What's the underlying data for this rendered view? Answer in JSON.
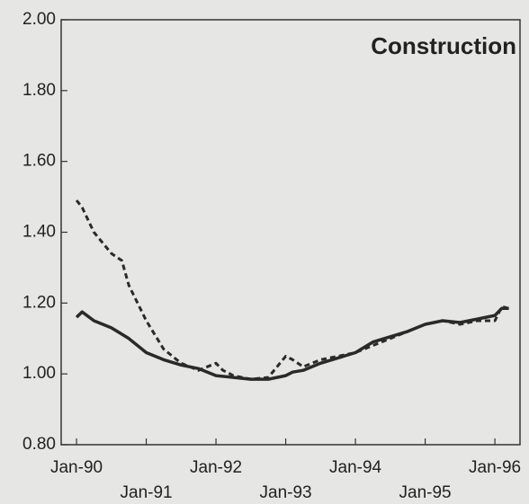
{
  "chart_data": {
    "type": "line",
    "title": "Construction",
    "series": [
      {
        "color": "#2a2a2a",
        "style": "solid",
        "x": [
          1990.0,
          1990.08,
          1990.25,
          1990.5,
          1990.75,
          1991.0,
          1991.25,
          1991.5,
          1991.75,
          1992.0,
          1992.25,
          1992.5,
          1992.75,
          1993.0,
          1993.1,
          1993.25,
          1993.5,
          1993.75,
          1994.0,
          1994.25,
          1994.5,
          1994.75,
          1995.0,
          1995.25,
          1995.5,
          1995.75,
          1996.0,
          1996.1,
          1996.2
        ],
        "values": [
          1.16,
          1.175,
          1.15,
          1.13,
          1.1,
          1.06,
          1.04,
          1.025,
          1.015,
          0.995,
          0.99,
          0.985,
          0.985,
          0.995,
          1.005,
          1.01,
          1.03,
          1.045,
          1.06,
          1.09,
          1.105,
          1.12,
          1.14,
          1.15,
          1.145,
          1.155,
          1.165,
          1.185,
          1.185
        ]
      },
      {
        "color": "#2a2a2a",
        "style": "dashed",
        "x": [
          1990.0,
          1990.08,
          1990.25,
          1990.5,
          1990.65,
          1990.75,
          1991.0,
          1991.25,
          1991.5,
          1991.75,
          1992.0,
          1992.1,
          1992.25,
          1992.5,
          1992.75,
          1993.0,
          1993.1,
          1993.25,
          1993.5,
          1993.75,
          1994.0,
          1994.25,
          1994.5,
          1994.75,
          1995.0,
          1995.25,
          1995.5,
          1995.75,
          1996.0,
          1996.1,
          1996.2
        ],
        "values": [
          1.49,
          1.47,
          1.4,
          1.34,
          1.32,
          1.25,
          1.15,
          1.07,
          1.03,
          1.01,
          1.03,
          1.01,
          0.995,
          0.985,
          0.99,
          1.05,
          1.04,
          1.02,
          1.04,
          1.05,
          1.06,
          1.08,
          1.1,
          1.12,
          1.14,
          1.15,
          1.14,
          1.15,
          1.15,
          1.19,
          1.185
        ]
      }
    ],
    "xlim": [
      1989.78,
      1996.36
    ],
    "xticks": [
      {
        "value": 1990,
        "label": "Jan-90"
      },
      {
        "value": 1991,
        "label": "Jan-91"
      },
      {
        "value": 1992,
        "label": "Jan-92"
      },
      {
        "value": 1993,
        "label": "Jan-93"
      },
      {
        "value": 1994,
        "label": "Jan-94"
      },
      {
        "value": 1995,
        "label": "Jan-95"
      },
      {
        "value": 1996,
        "label": "Jan-96"
      }
    ],
    "ylim": [
      0.8,
      2.0
    ],
    "yticks": [
      {
        "value": 0.8,
        "label": "0.80"
      },
      {
        "value": 1.0,
        "label": "1.00"
      },
      {
        "value": 1.2,
        "label": "1.20"
      },
      {
        "value": 1.4,
        "label": "1.40"
      },
      {
        "value": 1.6,
        "label": "1.60"
      },
      {
        "value": 1.8,
        "label": "1.80"
      },
      {
        "value": 2.0,
        "label": "2.00"
      }
    ],
    "grid": false
  }
}
